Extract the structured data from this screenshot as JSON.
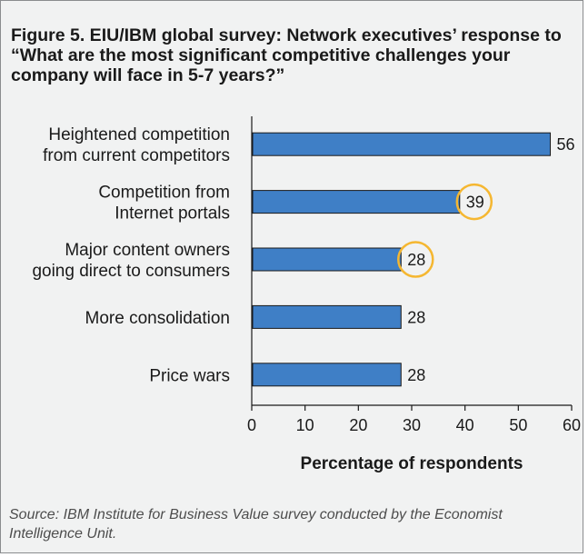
{
  "title": "Figure 5. EIU/IBM global survey: Network executives’ response to “What are the most significant competitive challenges your company will face in 5-7 years?”",
  "source": "Source: IBM Institute for Business Value survey conducted by the Economist Intelligence Unit.",
  "colors": {
    "bar": "#3f7fc6",
    "highlight": "#f5b731",
    "panel": "#f1f2f2"
  },
  "chart_data": {
    "type": "bar",
    "orientation": "horizontal",
    "categories": [
      [
        "Heightened competition",
        "from current competitors"
      ],
      [
        "Competition from",
        "Internet portals"
      ],
      [
        "Major content owners",
        "going direct to consumers"
      ],
      [
        "More consolidation"
      ],
      [
        "Price wars"
      ]
    ],
    "values": [
      56,
      39,
      28,
      28,
      28
    ],
    "highlighted": [
      false,
      true,
      true,
      false,
      false
    ],
    "xlabel": "Percentage of respondents",
    "ylabel": "",
    "xlim": [
      0,
      60
    ],
    "xticks": [
      0,
      10,
      20,
      30,
      40,
      50,
      60
    ],
    "grid": false,
    "legend": "none"
  }
}
